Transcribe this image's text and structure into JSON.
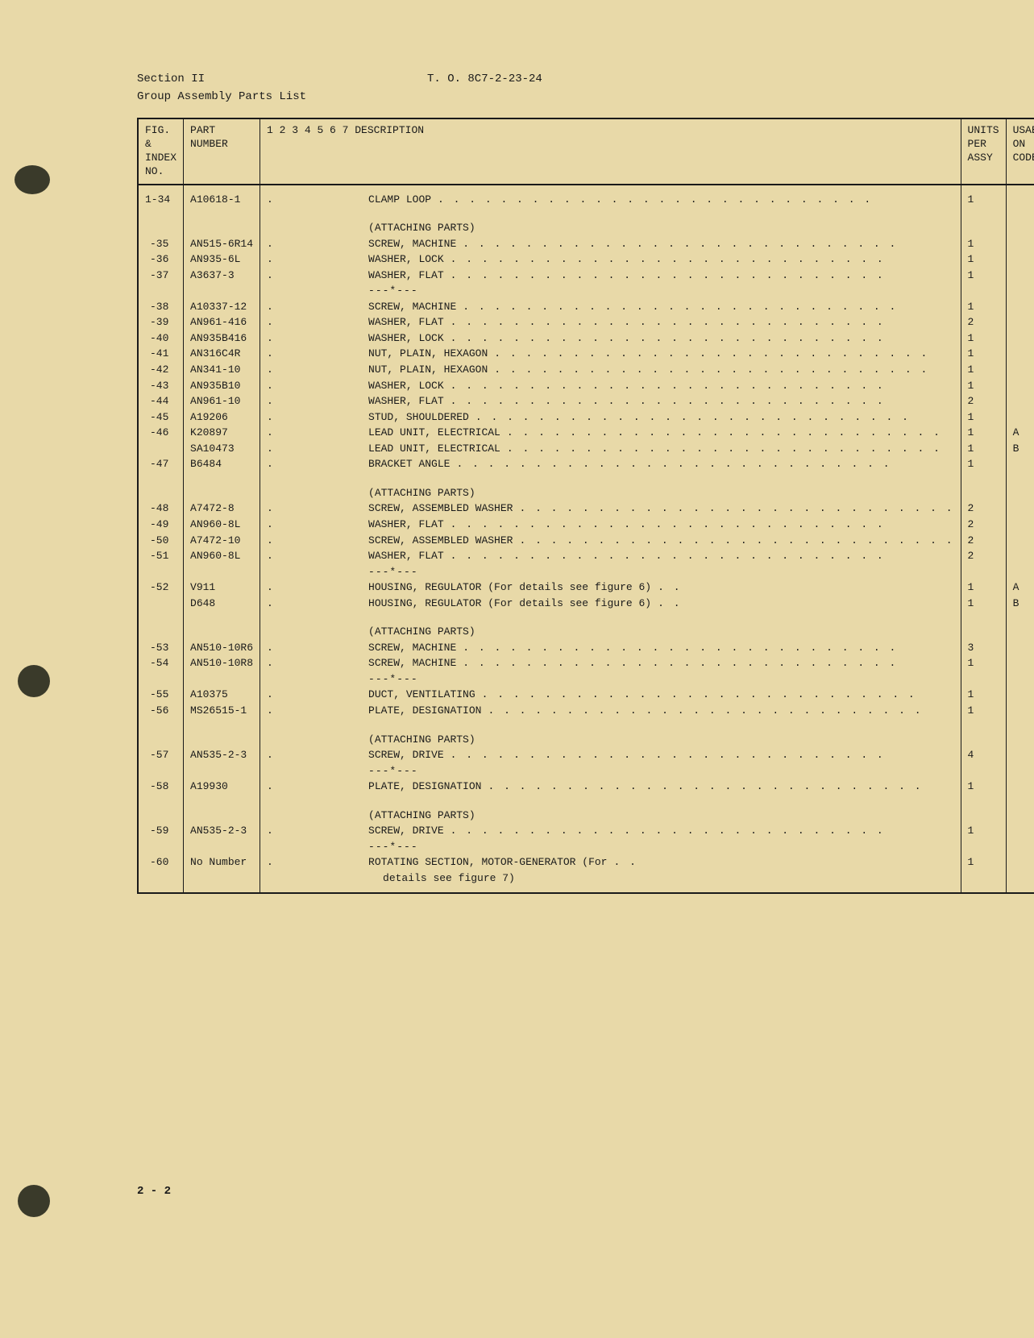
{
  "header": {
    "section": "Section II",
    "subtitle": "Group Assembly Parts List",
    "doc_number": "T. O. 8C7-2-23-24",
    "page_number": "2 - 2"
  },
  "columns": {
    "idx": "FIG. &\nINDEX\nNO.",
    "part": "PART\nNUMBER",
    "desc_nums": "1   2   3   4   5   6   7   DESCRIPTION",
    "units": "UNITS\nPER\nASSY",
    "code": "USABLE\nON\nCODE"
  },
  "attaching_label": "(ATTACHING PARTS)",
  "sep_label": "---*---",
  "rows": [
    {
      "idx": "1-34",
      "part": "A10618-1",
      "indent": ".",
      "desc": "CLAMP LOOP",
      "dots": true,
      "units": "1",
      "code": ""
    },
    {
      "spacer": true
    },
    {
      "header": true
    },
    {
      "idx": "-35",
      "part": "AN515-6R14",
      "indent": ".",
      "desc": "SCREW, MACHINE",
      "dots": true,
      "units": "1",
      "code": ""
    },
    {
      "idx": "-36",
      "part": "AN935-6L",
      "indent": ".",
      "desc": "WASHER, LOCK",
      "dots": true,
      "units": "1",
      "code": ""
    },
    {
      "idx": "-37",
      "part": "A3637-3",
      "indent": ".",
      "desc": "WASHER, FLAT",
      "dots": true,
      "units": "1",
      "code": ""
    },
    {
      "sep": true
    },
    {
      "idx": "-38",
      "part": "A10337-12",
      "indent": ".",
      "desc": "SCREW, MACHINE",
      "dots": true,
      "units": "1",
      "code": ""
    },
    {
      "idx": "-39",
      "part": "AN961-416",
      "indent": ".",
      "desc": "WASHER, FLAT",
      "dots": true,
      "units": "2",
      "code": ""
    },
    {
      "idx": "-40",
      "part": "AN935B416",
      "indent": ".",
      "desc": "WASHER, LOCK",
      "dots": true,
      "units": "1",
      "code": ""
    },
    {
      "idx": "-41",
      "part": "AN316C4R",
      "indent": ".",
      "desc": "NUT, PLAIN, HEXAGON",
      "dots": true,
      "units": "1",
      "code": ""
    },
    {
      "idx": "-42",
      "part": "AN341-10",
      "indent": ".",
      "desc": "NUT, PLAIN, HEXAGON",
      "dots": true,
      "units": "1",
      "code": ""
    },
    {
      "idx": "-43",
      "part": "AN935B10",
      "indent": ".",
      "desc": "WASHER, LOCK",
      "dots": true,
      "units": "1",
      "code": ""
    },
    {
      "idx": "-44",
      "part": "AN961-10",
      "indent": ".",
      "desc": "WASHER, FLAT",
      "dots": true,
      "units": "2",
      "code": ""
    },
    {
      "idx": "-45",
      "part": "A19206",
      "indent": ".",
      "desc": "STUD, SHOULDERED",
      "dots": true,
      "units": "1",
      "code": ""
    },
    {
      "idx": "-46",
      "part": "K20897",
      "indent": ".",
      "desc": "LEAD UNIT, ELECTRICAL",
      "dots": true,
      "units": "1",
      "code": "A"
    },
    {
      "idx": "",
      "part": "SA10473",
      "indent": ".",
      "desc": "LEAD UNIT, ELECTRICAL",
      "dots": true,
      "units": "1",
      "code": "B"
    },
    {
      "idx": "-47",
      "part": "B6484",
      "indent": ".",
      "desc": "BRACKET ANGLE",
      "dots": true,
      "units": "1",
      "code": ""
    },
    {
      "spacer": true
    },
    {
      "header": true
    },
    {
      "idx": "-48",
      "part": "A7472-8",
      "indent": ".",
      "desc": "SCREW, ASSEMBLED WASHER",
      "dots": true,
      "units": "2",
      "code": ""
    },
    {
      "idx": "-49",
      "part": "AN960-8L",
      "indent": ".",
      "desc": "WASHER, FLAT",
      "dots": true,
      "units": "2",
      "code": ""
    },
    {
      "idx": "-50",
      "part": "A7472-10",
      "indent": ".",
      "desc": "SCREW, ASSEMBLED WASHER",
      "dots": true,
      "units": "2",
      "code": ""
    },
    {
      "idx": "-51",
      "part": "AN960-8L",
      "indent": ".",
      "desc": "WASHER, FLAT",
      "dots": true,
      "units": "2",
      "code": ""
    },
    {
      "sep": true
    },
    {
      "idx": "-52",
      "part": "V911",
      "indent": ".",
      "desc": "HOUSING, REGULATOR (For details see figure 6)",
      "dots": true,
      "short_dots": true,
      "units": "1",
      "code": "A"
    },
    {
      "idx": "",
      "part": "D648",
      "indent": ".",
      "desc": "HOUSING, REGULATOR (For details see figure 6)",
      "dots": true,
      "short_dots": true,
      "units": "1",
      "code": "B"
    },
    {
      "spacer": true
    },
    {
      "header": true
    },
    {
      "idx": "-53",
      "part": "AN510-10R6",
      "indent": ".",
      "desc": "SCREW, MACHINE",
      "dots": true,
      "units": "3",
      "code": ""
    },
    {
      "idx": "-54",
      "part": "AN510-10R8",
      "indent": ".",
      "desc": "SCREW, MACHINE",
      "dots": true,
      "units": "1",
      "code": ""
    },
    {
      "sep": true
    },
    {
      "idx": "-55",
      "part": "A10375",
      "indent": ".",
      "desc": "DUCT, VENTILATING",
      "dots": true,
      "units": "1",
      "code": ""
    },
    {
      "idx": "-56",
      "part": "MS26515-1",
      "indent": ".",
      "desc": "PLATE, DESIGNATION",
      "dots": true,
      "units": "1",
      "code": ""
    },
    {
      "spacer": true
    },
    {
      "header": true
    },
    {
      "idx": "-57",
      "part": "AN535-2-3",
      "indent": ".",
      "desc": "SCREW, DRIVE",
      "dots": true,
      "units": "4",
      "code": ""
    },
    {
      "sep": true
    },
    {
      "idx": "-58",
      "part": "A19930",
      "indent": ".",
      "desc": "PLATE, DESIGNATION",
      "dots": true,
      "units": "1",
      "code": ""
    },
    {
      "spacer": true
    },
    {
      "header": true
    },
    {
      "idx": "-59",
      "part": "AN535-2-3",
      "indent": ".",
      "desc": "SCREW, DRIVE",
      "dots": true,
      "units": "1",
      "code": ""
    },
    {
      "sep": true
    },
    {
      "idx": "-60",
      "part": "No Number",
      "indent": ".",
      "desc": "ROTATING SECTION, MOTOR-GENERATOR (For",
      "dots": true,
      "short_dots": true,
      "units": "1",
      "code": ""
    },
    {
      "idx": "",
      "part": "",
      "indent": "",
      "desc": "  details see figure 7)",
      "dots": false,
      "units": "",
      "code": "",
      "continuation": true
    }
  ]
}
